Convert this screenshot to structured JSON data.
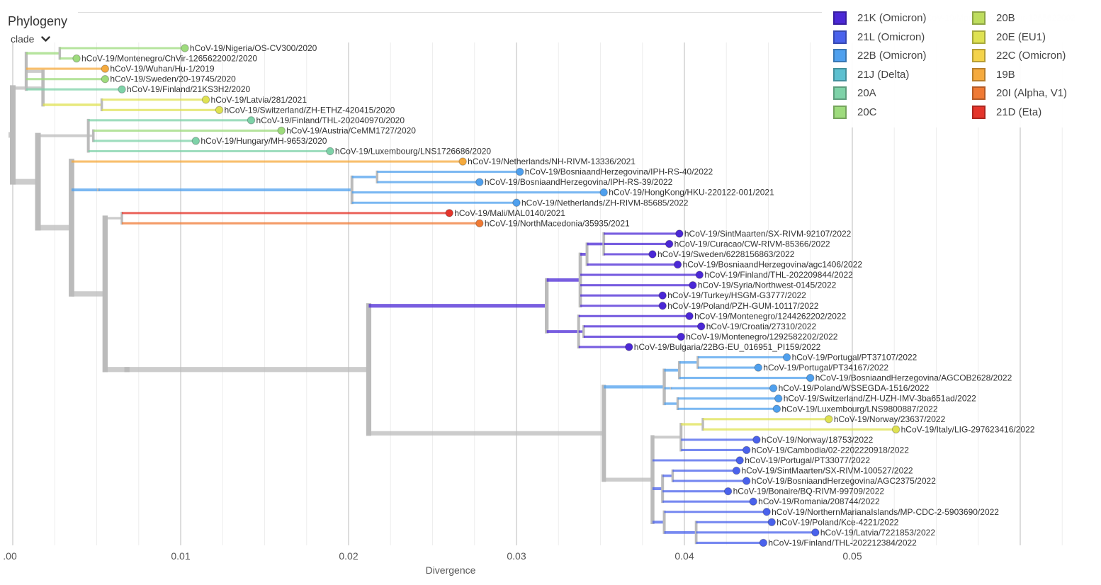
{
  "panel": {
    "title": "Phylogeny",
    "color_by": "clade"
  },
  "axis": {
    "label": "Divergence",
    "ticks": [
      {
        "value": 0.0,
        "label": ".00"
      },
      {
        "value": 0.01,
        "label": "0.01"
      },
      {
        "value": 0.02,
        "label": "0.02"
      },
      {
        "value": 0.03,
        "label": "0.03"
      },
      {
        "value": 0.04,
        "label": "0.04"
      },
      {
        "value": 0.05,
        "label": "0.05"
      }
    ]
  },
  "legend": [
    {
      "clade": "21K (Omicron)",
      "color": "#4B28D6"
    },
    {
      "clade": "21L (Omicron)",
      "color": "#4A62EC"
    },
    {
      "clade": "22B (Omicron)",
      "color": "#4FA0EE"
    },
    {
      "clade": "21J (Delta)",
      "color": "#5DC0D0"
    },
    {
      "clade": "20A",
      "color": "#7ED2A8"
    },
    {
      "clade": "20C",
      "color": "#9EDB7D"
    },
    {
      "clade": "20B",
      "color": "#BEDD5E"
    },
    {
      "clade": "20E (EU1)",
      "color": "#DFE252"
    },
    {
      "clade": "22C (Omicron)",
      "color": "#F4D34A"
    },
    {
      "clade": "19B",
      "color": "#F5AA3E"
    },
    {
      "clade": "20I (Alpha, V1)",
      "color": "#F07A34"
    },
    {
      "clade": "21D (Eta)",
      "color": "#E4352B"
    }
  ],
  "tree": {
    "tips": [
      {
        "name": "hCoV-19/Nigeria/OS-CV300/2020",
        "clade": "20C",
        "div": 0.01025
      },
      {
        "name": "hCoV-19/Montenegro/ChVir-1265622002/2020",
        "clade": "20C",
        "div": 0.0038
      },
      {
        "name": "hCoV-19/Wuhan/Hu-1/2019",
        "clade": "19B",
        "div": 0.0055
      },
      {
        "name": "hCoV-19/Sweden/20-19745/2020",
        "clade": "20C",
        "div": 0.0055
      },
      {
        "name": "hCoV-19/Finland/21KS3H2/2020",
        "clade": "20A",
        "div": 0.0065
      },
      {
        "name": "hCoV-19/Latvia/281/2021",
        "clade": "20E (EU1)",
        "div": 0.0115
      },
      {
        "name": "hCoV-19/Switzerland/ZH-ETHZ-420415/2020",
        "clade": "20E (EU1)",
        "div": 0.0123
      },
      {
        "name": "hCoV-19/Finland/THL-202040970/2020",
        "clade": "20A",
        "div": 0.0142
      },
      {
        "name": "hCoV-19/Austria/CeMM1727/2020",
        "clade": "20C",
        "div": 0.016
      },
      {
        "name": "hCoV-19/Hungary/MH-9653/2020",
        "clade": "20A",
        "div": 0.0109
      },
      {
        "name": "hCoV-19/Luxembourg/LNS1726686/2020",
        "clade": "20A",
        "div": 0.0189
      },
      {
        "name": "hCoV-19/Netherlands/NH-RIVM-13336/2021",
        "clade": "19B",
        "div": 0.0268
      },
      {
        "name": "hCoV-19/BosniaandHerzegovina/IPH-RS-40/2022",
        "clade": "22B (Omicron)",
        "div": 0.0302
      },
      {
        "name": "hCoV-19/BosniaandHerzegovina/IPH-RS-39/2022",
        "clade": "22B (Omicron)",
        "div": 0.0278
      },
      {
        "name": "hCoV-19/HongKong/HKU-220122-001/2021",
        "clade": "22B (Omicron)",
        "div": 0.0352
      },
      {
        "name": "hCoV-19/Netherlands/ZH-RIVM-85685/2022",
        "clade": "22B (Omicron)",
        "div": 0.03
      },
      {
        "name": "hCoV-19/Mali/MAL0140/2021",
        "clade": "21D (Eta)",
        "div": 0.026
      },
      {
        "name": "hCoV-19/NorthMacedonia/35935/2021",
        "clade": "20I (Alpha, V1)",
        "div": 0.0278
      },
      {
        "name": "hCoV-19/SintMaarten/SX-RIVM-92107/2022",
        "clade": "21K (Omicron)",
        "div": 0.0397
      },
      {
        "name": "hCoV-19/Curacao/CW-RIVM-85366/2022",
        "clade": "21K (Omicron)",
        "div": 0.0391
      },
      {
        "name": "hCoV-19/Sweden/6228156863/2022",
        "clade": "21K (Omicron)",
        "div": 0.0381
      },
      {
        "name": "hCoV-19/BosniaandHerzegovina/agc1406/2022",
        "clade": "21K (Omicron)",
        "div": 0.0396
      },
      {
        "name": "hCoV-19/Finland/THL-202209844/2022",
        "clade": "21K (Omicron)",
        "div": 0.0409
      },
      {
        "name": "hCoV-19/Syria/Northwest-0145/2022",
        "clade": "21K (Omicron)",
        "div": 0.0405
      },
      {
        "name": "hCoV-19/Turkey/HSGM-G3777/2022",
        "clade": "21K (Omicron)",
        "div": 0.0387
      },
      {
        "name": "hCoV-19/Poland/PZH-GUM-10117/2022",
        "clade": "21K (Omicron)",
        "div": 0.0387
      },
      {
        "name": "hCoV-19/Montenegro/1244262202/2022",
        "clade": "21K (Omicron)",
        "div": 0.0403
      },
      {
        "name": "hCoV-19/Croatia/27310/2022",
        "clade": "21K (Omicron)",
        "div": 0.041
      },
      {
        "name": "hCoV-19/Montenegro/1292582202/2022",
        "clade": "21K (Omicron)",
        "div": 0.0398
      },
      {
        "name": "hCoV-19/Bulgaria/22BG-EU_016951_PI159/2022",
        "clade": "21K (Omicron)",
        "div": 0.0367
      },
      {
        "name": "hCoV-19/Portugal/PT37107/2022",
        "clade": "22B (Omicron)",
        "div": 0.0461
      },
      {
        "name": "hCoV-19/Portugal/PT34167/2022",
        "clade": "22B (Omicron)",
        "div": 0.0444
      },
      {
        "name": "hCoV-19/BosniaandHerzegovina/AGCOB2628/2022",
        "clade": "22B (Omicron)",
        "div": 0.0475
      },
      {
        "name": "hCoV-19/Poland/WSSEGDA-1516/2022",
        "clade": "22B (Omicron)",
        "div": 0.0453
      },
      {
        "name": "hCoV-19/Switzerland/ZH-UZH-IMV-3ba651ad/2022",
        "clade": "22B (Omicron)",
        "div": 0.0456
      },
      {
        "name": "hCoV-19/Luxembourg/LNS9800887/2022",
        "clade": "22B (Omicron)",
        "div": 0.0455
      },
      {
        "name": "hCoV-19/Norway/23637/2022",
        "clade": "20E (EU1)",
        "div": 0.0486
      },
      {
        "name": "hCoV-19/Italy/LIG-297623416/2022",
        "clade": "20E (EU1)",
        "div": 0.0526
      },
      {
        "name": "hCoV-19/Norway/18753/2022",
        "clade": "21L (Omicron)",
        "div": 0.0443
      },
      {
        "name": "hCoV-19/Cambodia/02-2202220918/2022",
        "clade": "21L (Omicron)",
        "div": 0.0437
      },
      {
        "name": "hCoV-19/Portugal/PT33077/2022",
        "clade": "21L (Omicron)",
        "div": 0.0433
      },
      {
        "name": "hCoV-19/SintMaarten/SX-RIVM-100527/2022",
        "clade": "21L (Omicron)",
        "div": 0.0431
      },
      {
        "name": "hCoV-19/BosniaandHerzegovina/AGC2375/2022",
        "clade": "21L (Omicron)",
        "div": 0.0437
      },
      {
        "name": "hCoV-19/Bonaire/BQ-RIVM-99709/2022",
        "clade": "21L (Omicron)",
        "div": 0.0426
      },
      {
        "name": "hCoV-19/Romania/208744/2022",
        "clade": "21L (Omicron)",
        "div": 0.0441
      },
      {
        "name": "hCoV-19/NorthernMarianaIslands/MP-CDC-2-5903690/2022",
        "clade": "21L (Omicron)",
        "div": 0.0449
      },
      {
        "name": "hCoV-19/Poland/Kce-4221/2022",
        "clade": "21L (Omicron)",
        "div": 0.0452
      },
      {
        "name": "hCoV-19/Latvia/7221853/2022",
        "clade": "21L (Omicron)",
        "div": 0.0478
      },
      {
        "name": "hCoV-19/Finland/THL-202212384/2022",
        "clade": "21L (Omicron)",
        "div": 0.0447
      }
    ]
  }
}
